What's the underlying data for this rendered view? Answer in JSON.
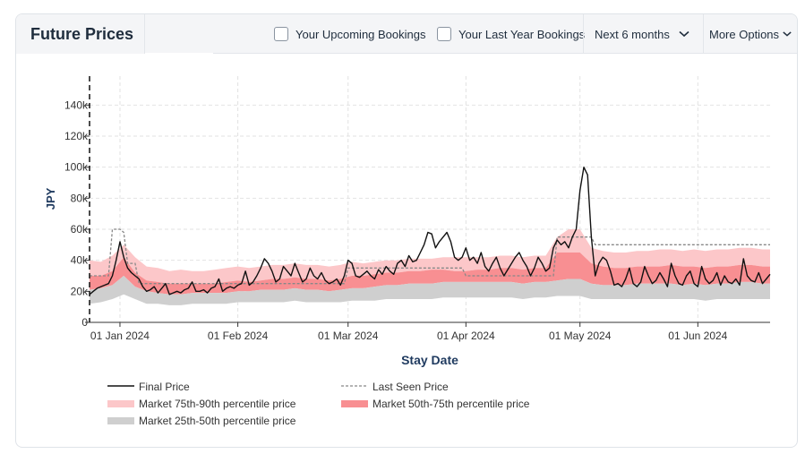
{
  "header": {
    "title": "Future Prices",
    "check_upcoming": "Your Upcoming Bookings",
    "check_last_year": "Your Last Year Bookings",
    "period_select": "Next 6 months",
    "more_options": "More Options"
  },
  "chart_data": {
    "type": "line",
    "xlabel": "Stay Date",
    "ylabel": "JPY",
    "xlim": [
      "2023-12-24",
      "2024-06-20"
    ],
    "ylim": [
      0,
      150000
    ],
    "yticks": [
      {
        "value": 0,
        "label": "0"
      },
      {
        "value": 20000,
        "label": "20k"
      },
      {
        "value": 40000,
        "label": "40k"
      },
      {
        "value": 60000,
        "label": "60k"
      },
      {
        "value": 80000,
        "label": "80k"
      },
      {
        "value": 100000,
        "label": "100k"
      },
      {
        "value": 120000,
        "label": "120k"
      },
      {
        "value": 140000,
        "label": "140k"
      }
    ],
    "xticks": [
      {
        "date": "2024-01-01",
        "label": "01 Jan 2024"
      },
      {
        "date": "2024-02-01",
        "label": "01 Feb 2024"
      },
      {
        "date": "2024-03-01",
        "label": "01 Mar 2024"
      },
      {
        "date": "2024-04-01",
        "label": "01 Apr 2024"
      },
      {
        "date": "2024-05-01",
        "label": "01 May 2024"
      },
      {
        "date": "2024-06-01",
        "label": "01 Jun 2024"
      }
    ],
    "today_marker": "2023-12-24",
    "grid": true,
    "legend_position": "bottom",
    "colors": {
      "final": "#111111",
      "last_seen": "#888888",
      "p75_90": "#fcc7c9",
      "p50_75": "#f88f92",
      "p25_50": "#cfcfcf"
    },
    "legend": {
      "final": "Final Price",
      "last_seen": "Last Seen Price",
      "p75_90": "Market 75th-90th percentile price",
      "p50_75": "Market 50th-75th percentile price",
      "p25_50": "Market 25th-50th percentile price"
    },
    "series": {
      "final_price": [
        [
          "2023-12-24",
          18000
        ],
        [
          "2023-12-25",
          20000
        ],
        [
          "2023-12-26",
          22000
        ],
        [
          "2023-12-27",
          23000
        ],
        [
          "2023-12-28",
          24000
        ],
        [
          "2023-12-29",
          25000
        ],
        [
          "2023-12-30",
          30000
        ],
        [
          "2023-12-31",
          40000
        ],
        [
          "2024-01-01",
          52000
        ],
        [
          "2024-01-02",
          42000
        ],
        [
          "2024-01-03",
          35000
        ],
        [
          "2024-01-04",
          32000
        ],
        [
          "2024-01-05",
          30000
        ],
        [
          "2024-01-06",
          28000
        ],
        [
          "2024-01-07",
          23000
        ],
        [
          "2024-01-08",
          20000
        ],
        [
          "2024-01-09",
          21000
        ],
        [
          "2024-01-10",
          23000
        ],
        [
          "2024-01-11",
          19000
        ],
        [
          "2024-01-12",
          22000
        ],
        [
          "2024-01-13",
          25000
        ],
        [
          "2024-01-14",
          18000
        ],
        [
          "2024-01-15",
          19000
        ],
        [
          "2024-01-16",
          20000
        ],
        [
          "2024-01-17",
          19000
        ],
        [
          "2024-01-18",
          21000
        ],
        [
          "2024-01-19",
          22000
        ],
        [
          "2024-01-20",
          26000
        ],
        [
          "2024-01-21",
          20000
        ],
        [
          "2024-01-22",
          20000
        ],
        [
          "2024-01-23",
          21000
        ],
        [
          "2024-01-24",
          19000
        ],
        [
          "2024-01-25",
          22000
        ],
        [
          "2024-01-26",
          23000
        ],
        [
          "2024-01-27",
          28000
        ],
        [
          "2024-01-28",
          20000
        ],
        [
          "2024-01-29",
          22000
        ],
        [
          "2024-01-30",
          23000
        ],
        [
          "2024-01-31",
          22000
        ],
        [
          "2024-02-01",
          24000
        ],
        [
          "2024-02-02",
          25000
        ],
        [
          "2024-02-03",
          33000
        ],
        [
          "2024-02-04",
          24000
        ],
        [
          "2024-02-05",
          26000
        ],
        [
          "2024-02-06",
          30000
        ],
        [
          "2024-02-07",
          35000
        ],
        [
          "2024-02-08",
          41000
        ],
        [
          "2024-02-09",
          38000
        ],
        [
          "2024-02-10",
          33000
        ],
        [
          "2024-02-11",
          26000
        ],
        [
          "2024-02-12",
          28000
        ],
        [
          "2024-02-13",
          36000
        ],
        [
          "2024-02-14",
          33000
        ],
        [
          "2024-02-15",
          30000
        ],
        [
          "2024-02-16",
          38000
        ],
        [
          "2024-02-17",
          32000
        ],
        [
          "2024-02-18",
          26000
        ],
        [
          "2024-02-19",
          28000
        ],
        [
          "2024-02-20",
          35000
        ],
        [
          "2024-02-21",
          30000
        ],
        [
          "2024-02-22",
          28000
        ],
        [
          "2024-02-23",
          32000
        ],
        [
          "2024-02-24",
          27000
        ],
        [
          "2024-02-25",
          25000
        ],
        [
          "2024-02-26",
          26000
        ],
        [
          "2024-02-27",
          28000
        ],
        [
          "2024-02-28",
          24000
        ],
        [
          "2024-02-29",
          30000
        ],
        [
          "2024-03-01",
          40000
        ],
        [
          "2024-03-02",
          38000
        ],
        [
          "2024-03-03",
          30000
        ],
        [
          "2024-03-04",
          29000
        ],
        [
          "2024-03-05",
          31000
        ],
        [
          "2024-03-06",
          33000
        ],
        [
          "2024-03-07",
          30000
        ],
        [
          "2024-03-08",
          28000
        ],
        [
          "2024-03-09",
          34000
        ],
        [
          "2024-03-10",
          31000
        ],
        [
          "2024-03-11",
          36000
        ],
        [
          "2024-03-12",
          33000
        ],
        [
          "2024-03-13",
          31000
        ],
        [
          "2024-03-14",
          38000
        ],
        [
          "2024-03-15",
          40000
        ],
        [
          "2024-03-16",
          36000
        ],
        [
          "2024-03-17",
          43000
        ],
        [
          "2024-03-18",
          39000
        ],
        [
          "2024-03-19",
          40000
        ],
        [
          "2024-03-20",
          45000
        ],
        [
          "2024-03-21",
          50000
        ],
        [
          "2024-03-22",
          58000
        ],
        [
          "2024-03-23",
          57000
        ],
        [
          "2024-03-24",
          48000
        ],
        [
          "2024-03-25",
          52000
        ],
        [
          "2024-03-26",
          55000
        ],
        [
          "2024-03-27",
          58000
        ],
        [
          "2024-03-28",
          52000
        ],
        [
          "2024-03-29",
          42000
        ],
        [
          "2024-03-30",
          40000
        ],
        [
          "2024-03-31",
          42000
        ],
        [
          "2024-04-01",
          48000
        ],
        [
          "2024-04-02",
          40000
        ],
        [
          "2024-04-03",
          42000
        ],
        [
          "2024-04-04",
          38000
        ],
        [
          "2024-04-05",
          45000
        ],
        [
          "2024-04-06",
          36000
        ],
        [
          "2024-04-07",
          33000
        ],
        [
          "2024-04-08",
          38000
        ],
        [
          "2024-04-09",
          42000
        ],
        [
          "2024-04-10",
          35000
        ],
        [
          "2024-04-11",
          30000
        ],
        [
          "2024-04-12",
          34000
        ],
        [
          "2024-04-13",
          38000
        ],
        [
          "2024-04-14",
          42000
        ],
        [
          "2024-04-15",
          45000
        ],
        [
          "2024-04-16",
          40000
        ],
        [
          "2024-04-17",
          36000
        ],
        [
          "2024-04-18",
          30000
        ],
        [
          "2024-04-19",
          35000
        ],
        [
          "2024-04-20",
          42000
        ],
        [
          "2024-04-21",
          38000
        ],
        [
          "2024-04-22",
          33000
        ],
        [
          "2024-04-23",
          35000
        ],
        [
          "2024-04-24",
          48000
        ],
        [
          "2024-04-25",
          53000
        ],
        [
          "2024-04-26",
          50000
        ],
        [
          "2024-04-27",
          52000
        ],
        [
          "2024-04-28",
          48000
        ],
        [
          "2024-04-29",
          55000
        ],
        [
          "2024-04-30",
          60000
        ],
        [
          "2024-05-01",
          85000
        ],
        [
          "2024-05-02",
          100000
        ],
        [
          "2024-05-03",
          95000
        ],
        [
          "2024-05-04",
          55000
        ],
        [
          "2024-05-05",
          30000
        ],
        [
          "2024-05-06",
          38000
        ],
        [
          "2024-05-07",
          42000
        ],
        [
          "2024-05-08",
          40000
        ],
        [
          "2024-05-09",
          33000
        ],
        [
          "2024-05-10",
          24000
        ],
        [
          "2024-05-11",
          25000
        ],
        [
          "2024-05-12",
          23000
        ],
        [
          "2024-05-13",
          28000
        ],
        [
          "2024-05-14",
          35000
        ],
        [
          "2024-05-15",
          25000
        ],
        [
          "2024-05-16",
          23000
        ],
        [
          "2024-05-17",
          26000
        ],
        [
          "2024-05-18",
          36000
        ],
        [
          "2024-05-19",
          30000
        ],
        [
          "2024-05-20",
          25000
        ],
        [
          "2024-05-21",
          27000
        ],
        [
          "2024-05-22",
          32000
        ],
        [
          "2024-05-23",
          28000
        ],
        [
          "2024-05-24",
          23000
        ],
        [
          "2024-05-25",
          38000
        ],
        [
          "2024-05-26",
          30000
        ],
        [
          "2024-05-27",
          25000
        ],
        [
          "2024-05-28",
          24000
        ],
        [
          "2024-05-29",
          30000
        ],
        [
          "2024-05-30",
          33000
        ],
        [
          "2024-05-31",
          25000
        ],
        [
          "2024-06-01",
          23000
        ],
        [
          "2024-06-02",
          36000
        ],
        [
          "2024-06-03",
          28000
        ],
        [
          "2024-06-04",
          25000
        ],
        [
          "2024-06-05",
          27000
        ],
        [
          "2024-06-06",
          32000
        ],
        [
          "2024-06-07",
          24000
        ],
        [
          "2024-06-08",
          30000
        ],
        [
          "2024-06-09",
          26000
        ],
        [
          "2024-06-10",
          25000
        ],
        [
          "2024-06-11",
          28000
        ],
        [
          "2024-06-12",
          24000
        ],
        [
          "2024-06-13",
          41000
        ],
        [
          "2024-06-14",
          30000
        ],
        [
          "2024-06-15",
          27000
        ],
        [
          "2024-06-16",
          26000
        ],
        [
          "2024-06-17",
          32000
        ],
        [
          "2024-06-18",
          25000
        ],
        [
          "2024-06-19",
          28000
        ],
        [
          "2024-06-20",
          31000
        ]
      ],
      "last_seen_price": [
        [
          "2023-12-24",
          30000
        ],
        [
          "2023-12-29",
          30000
        ],
        [
          "2023-12-30",
          60000
        ],
        [
          "2024-01-01",
          60000
        ],
        [
          "2024-01-02",
          58000
        ],
        [
          "2024-01-03",
          38000
        ],
        [
          "2024-01-05",
          38000
        ],
        [
          "2024-01-06",
          25000
        ],
        [
          "2024-02-29",
          25000
        ],
        [
          "2024-03-01",
          35000
        ],
        [
          "2024-03-31",
          35000
        ],
        [
          "2024-04-01",
          30000
        ],
        [
          "2024-04-24",
          30000
        ],
        [
          "2024-04-25",
          55000
        ],
        [
          "2024-05-04",
          55000
        ],
        [
          "2024-05-05",
          50000
        ],
        [
          "2024-06-20",
          50000
        ]
      ],
      "band_dates": [
        "2023-12-24",
        "2023-12-27",
        "2023-12-30",
        "2024-01-02",
        "2024-01-05",
        "2024-01-08",
        "2024-01-11",
        "2024-01-14",
        "2024-01-17",
        "2024-01-20",
        "2024-01-23",
        "2024-01-26",
        "2024-01-29",
        "2024-02-01",
        "2024-02-04",
        "2024-02-07",
        "2024-02-10",
        "2024-02-13",
        "2024-02-16",
        "2024-02-19",
        "2024-02-22",
        "2024-02-25",
        "2024-02-28",
        "2024-03-02",
        "2024-03-05",
        "2024-03-08",
        "2024-03-11",
        "2024-03-14",
        "2024-03-17",
        "2024-03-20",
        "2024-03-23",
        "2024-03-26",
        "2024-03-29",
        "2024-04-01",
        "2024-04-04",
        "2024-04-07",
        "2024-04-10",
        "2024-04-13",
        "2024-04-16",
        "2024-04-19",
        "2024-04-22",
        "2024-04-25",
        "2024-04-28",
        "2024-05-01",
        "2024-05-04",
        "2024-05-07",
        "2024-05-10",
        "2024-05-13",
        "2024-05-16",
        "2024-05-19",
        "2024-05-22",
        "2024-05-25",
        "2024-05-28",
        "2024-05-31",
        "2024-06-03",
        "2024-06-06",
        "2024-06-09",
        "2024-06-12",
        "2024-06-15",
        "2024-06-18",
        "2024-06-20"
      ],
      "p90": [
        40000,
        39000,
        43000,
        50000,
        42000,
        36000,
        35000,
        33000,
        34000,
        33000,
        33000,
        34000,
        35000,
        36000,
        35000,
        36000,
        37000,
        37000,
        38000,
        37000,
        37000,
        36000,
        37000,
        39000,
        38000,
        39000,
        40000,
        40000,
        41000,
        41000,
        41000,
        42000,
        42000,
        42000,
        42000,
        42000,
        43000,
        43000,
        42000,
        43000,
        43000,
        55000,
        60000,
        60000,
        48000,
        46000,
        45000,
        45000,
        46000,
        46000,
        47000,
        47000,
        46000,
        47000,
        46000,
        47000,
        47000,
        48000,
        48000,
        47000,
        47000
      ],
      "p75": [
        30000,
        30000,
        33000,
        42000,
        32000,
        27000,
        26000,
        25000,
        25000,
        25000,
        25000,
        25000,
        26000,
        27000,
        26000,
        27000,
        28000,
        28000,
        29000,
        28000,
        28000,
        27000,
        28000,
        30000,
        30000,
        31000,
        32000,
        32000,
        33000,
        33000,
        34000,
        34000,
        33000,
        33000,
        34000,
        34000,
        35000,
        35000,
        34000,
        35000,
        35000,
        45000,
        45000,
        45000,
        38000,
        36000,
        35000,
        35000,
        36000,
        36000,
        36000,
        37000,
        36000,
        36000,
        35000,
        36000,
        36000,
        37000,
        37000,
        36000,
        36000
      ],
      "p50": [
        21000,
        22000,
        24000,
        30000,
        23000,
        20000,
        19000,
        18000,
        18000,
        19000,
        19000,
        19000,
        19000,
        20000,
        20000,
        21000,
        21000,
        21000,
        22000,
        21000,
        21000,
        20000,
        21000,
        22000,
        22000,
        23000,
        24000,
        24000,
        25000,
        25000,
        25000,
        26000,
        26000,
        26000,
        26000,
        26000,
        26000,
        26000,
        25000,
        26000,
        26000,
        27000,
        28000,
        28000,
        25000,
        24000,
        24000,
        24000,
        25000,
        25000,
        25000,
        25000,
        24000,
        25000,
        24000,
        25000,
        25000,
        26000,
        26000,
        25000,
        25000
      ],
      "p25": [
        12000,
        13000,
        15000,
        18000,
        15000,
        12000,
        12000,
        11000,
        11000,
        12000,
        12000,
        12000,
        12000,
        13000,
        13000,
        13000,
        13000,
        13000,
        14000,
        13000,
        13000,
        13000,
        13000,
        14000,
        14000,
        14000,
        15000,
        15000,
        15000,
        15000,
        15000,
        16000,
        16000,
        16000,
        16000,
        16000,
        16000,
        16000,
        15000,
        16000,
        16000,
        17000,
        17000,
        17000,
        15000,
        15000,
        15000,
        15000,
        15000,
        15000,
        15000,
        15000,
        15000,
        15000,
        14000,
        15000,
        15000,
        15000,
        15000,
        15000,
        15000
      ]
    }
  }
}
